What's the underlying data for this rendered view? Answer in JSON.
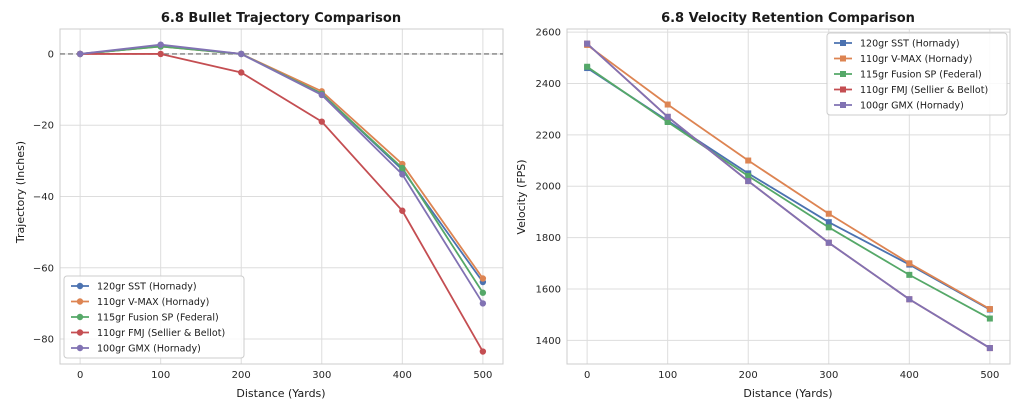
{
  "chart_data": [
    {
      "type": "line",
      "title": "6.8 Bullet Trajectory Comparison",
      "xlabel": "Distance (Yards)",
      "ylabel": "Trajectory (Inches)",
      "x": [
        0,
        100,
        200,
        300,
        400,
        500
      ],
      "xlim": [
        -25,
        525
      ],
      "ylim": [
        -87,
        7
      ],
      "xticks": [
        "0",
        "100",
        "200",
        "300",
        "400",
        "500"
      ],
      "yticks": [
        0,
        -20,
        -40,
        -60,
        -80
      ],
      "reference_line": 0,
      "marker": "circle",
      "grid": true,
      "legend_position": "lower-left",
      "series": [
        {
          "name": "120gr SST (Hornady)",
          "color": "#4c72b0",
          "values": [
            0,
            2.2,
            0,
            -11.1,
            -32.5,
            -64
          ]
        },
        {
          "name": "110gr V-MAX (Hornady)",
          "color": "#dd8452",
          "values": [
            0,
            2.1,
            0,
            -10.5,
            -30.9,
            -63
          ]
        },
        {
          "name": "115gr Fusion SP (Federal)",
          "color": "#55a868",
          "values": [
            0,
            2.1,
            0,
            -11.2,
            -32,
            -67
          ]
        },
        {
          "name": "110gr FMJ (Sellier & Bellot)",
          "color": "#c44e52",
          "values": [
            0,
            0,
            -5.2,
            -19,
            -44,
            -83.5
          ]
        },
        {
          "name": "100gr GMX (Hornady)",
          "color": "#8172b3",
          "values": [
            0,
            2.6,
            0,
            -11.5,
            -33.8,
            -70
          ]
        }
      ]
    },
    {
      "type": "line",
      "title": "6.8 Velocity Retention Comparison",
      "xlabel": "Distance (Yards)",
      "ylabel": "Velocity (FPS)",
      "x": [
        0,
        100,
        200,
        300,
        400,
        500
      ],
      "xlim": [
        -25,
        525
      ],
      "ylim": [
        1308,
        2612
      ],
      "xticks": [
        "0",
        "100",
        "200",
        "300",
        "400",
        "500"
      ],
      "yticks": [
        1400,
        1600,
        1800,
        2000,
        2200,
        2400,
        2600
      ],
      "marker": "square",
      "grid": true,
      "legend_position": "upper-right",
      "series": [
        {
          "name": "120gr SST (Hornady)",
          "color": "#4c72b0",
          "values": [
            2460,
            2255,
            2050,
            1860,
            1695,
            1520
          ]
        },
        {
          "name": "110gr V-MAX (Hornady)",
          "color": "#dd8452",
          "values": [
            2550,
            2318,
            2100,
            1893,
            1700,
            1522
          ]
        },
        {
          "name": "115gr Fusion SP (Federal)",
          "color": "#55a868",
          "values": [
            2465,
            2250,
            2040,
            1840,
            1655,
            1485
          ]
        },
        {
          "name": "110gr FMJ (Sellier & Bellot)",
          "color": "#c44e52",
          "values": [
            2555,
            2270,
            2020,
            1780,
            1560,
            1370
          ]
        },
        {
          "name": "100gr GMX (Hornady)",
          "color": "#8172b3",
          "values": [
            2555,
            2270,
            2020,
            1780,
            1560,
            1370
          ]
        }
      ]
    }
  ]
}
